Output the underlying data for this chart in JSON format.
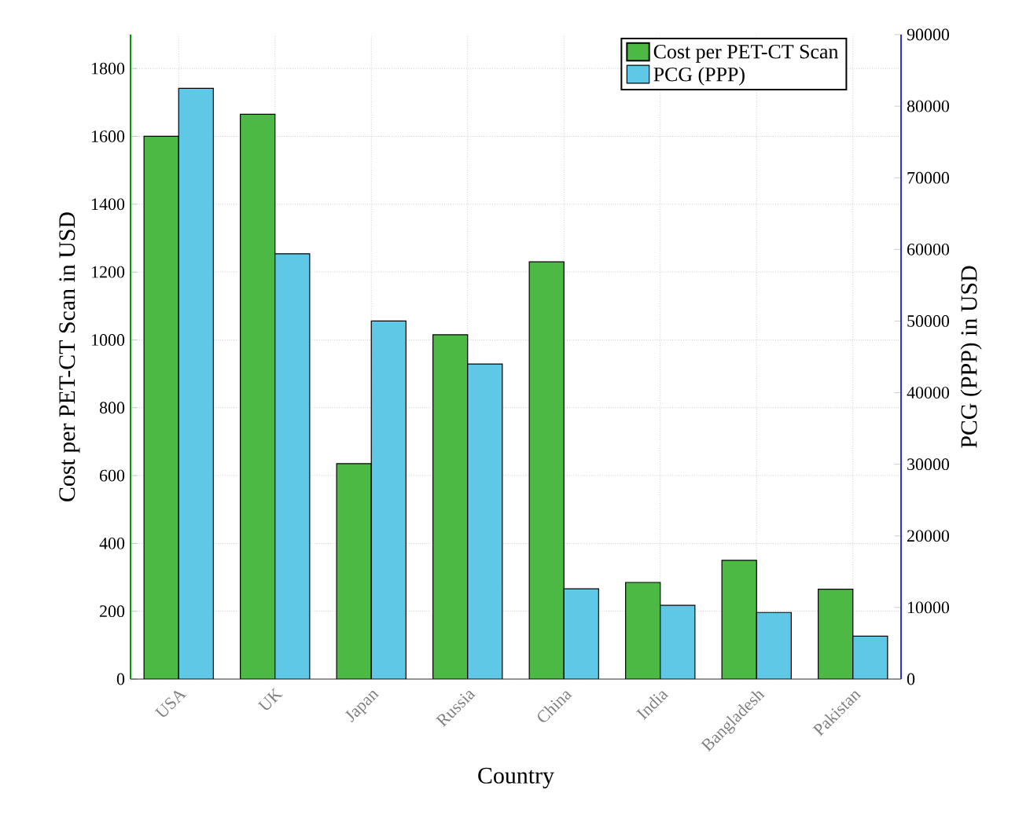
{
  "chart_data": {
    "type": "bar",
    "xlabel": "Country",
    "ylabel": "Cost per PET-CT Scan in USD",
    "y2label": "PCG (PPP) in USD",
    "categories": [
      "USA",
      "UK",
      "Japan",
      "Russia",
      "China",
      "India",
      "Bangladesh",
      "Pakistan"
    ],
    "series": [
      {
        "name": "Cost per PET-CT Scan",
        "color": "#4cb944",
        "values": [
          1600,
          1665,
          635,
          1015,
          1230,
          285,
          350,
          265
        ]
      },
      {
        "name": "PCG (PPP)",
        "color": "#5ec8e6",
        "axis": "y2",
        "values": [
          82500,
          59400,
          50000,
          44000,
          12600,
          10300,
          9300,
          6000
        ]
      }
    ],
    "ylim": [
      0,
      1900
    ],
    "yticks": [
      0,
      200,
      400,
      600,
      800,
      1000,
      1200,
      1400,
      1600,
      1800
    ],
    "y2lim": [
      0,
      90000
    ],
    "y2ticks": [
      0,
      10000,
      20000,
      30000,
      40000,
      50000,
      60000,
      70000,
      80000,
      90000
    ],
    "grid": true,
    "legend": "top right"
  }
}
